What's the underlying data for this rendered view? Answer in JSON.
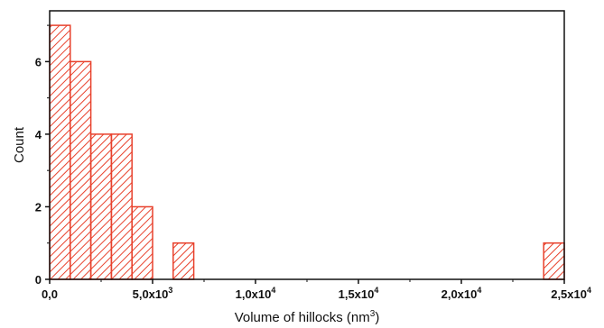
{
  "chart_data": {
    "type": "histogram",
    "xlabel": "Volume of hillocks (nm",
    "xlabel_sup": "3",
    "xlabel_end": ")",
    "ylabel": "Count",
    "xlim": [
      0,
      25000
    ],
    "ylim": [
      0,
      7.4
    ],
    "bin_width": 1000,
    "bins": [
      {
        "start": 0,
        "end": 1000,
        "count": 7
      },
      {
        "start": 1000,
        "end": 2000,
        "count": 6
      },
      {
        "start": 2000,
        "end": 3000,
        "count": 4
      },
      {
        "start": 3000,
        "end": 4000,
        "count": 4
      },
      {
        "start": 4000,
        "end": 5000,
        "count": 2
      },
      {
        "start": 6000,
        "end": 7000,
        "count": 1
      },
      {
        "start": 24000,
        "end": 25000,
        "count": 1
      }
    ],
    "x_ticks": [
      {
        "value": 0,
        "base": "0,0",
        "exp": ""
      },
      {
        "value": 5000,
        "base": "5,0x10",
        "exp": "3"
      },
      {
        "value": 10000,
        "base": "1,0x10",
        "exp": "4"
      },
      {
        "value": 15000,
        "base": "1,5x10",
        "exp": "4"
      },
      {
        "value": 20000,
        "base": "2,0x10",
        "exp": "4"
      },
      {
        "value": 25000,
        "base": "2,5x10",
        "exp": "4"
      }
    ],
    "y_ticks": [
      0,
      2,
      4,
      6
    ],
    "bar_color": "#e8412c",
    "hatch": "diagonal",
    "grid": false
  }
}
